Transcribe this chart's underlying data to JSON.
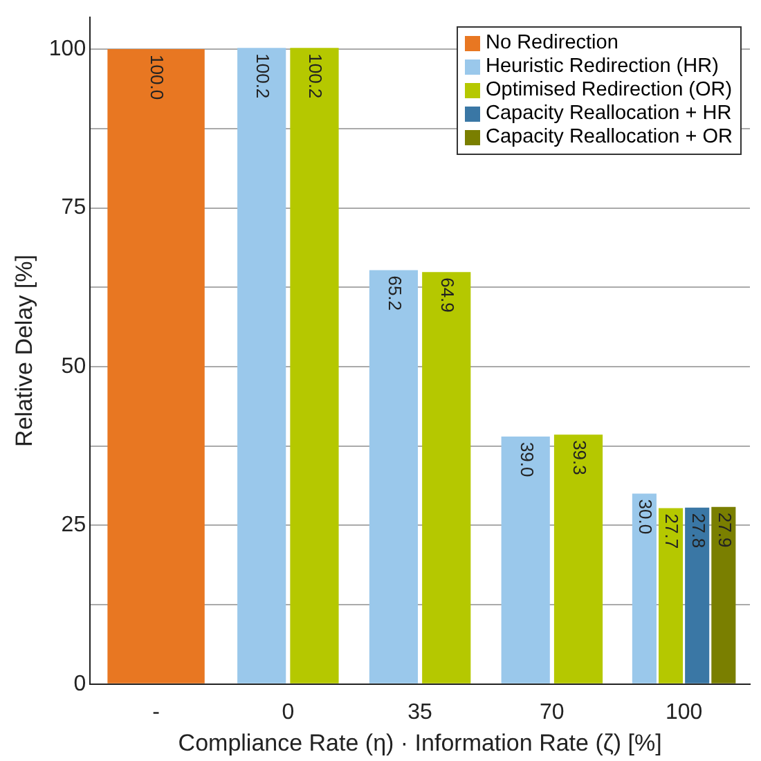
{
  "chart_data": {
    "type": "bar",
    "xlabel": "Compliance Rate (η) · Information Rate (ζ) [%]",
    "ylabel": "Relative Delay [%]",
    "categories": [
      "-",
      "0",
      "35",
      "70",
      "100"
    ],
    "series": [
      {
        "name": "No Redirection",
        "color": "#e87722",
        "values": [
          100.0,
          null,
          null,
          null,
          null
        ],
        "value_labels": [
          "100.0",
          null,
          null,
          null,
          null
        ]
      },
      {
        "name": "Heuristic Redirection (HR)",
        "color": "#9ac8eb",
        "values": [
          null,
          100.2,
          65.2,
          39.0,
          30.0
        ],
        "value_labels": [
          null,
          "100.2",
          "65.2",
          "39.0",
          "30.0"
        ]
      },
      {
        "name": "Optimised Redirection (OR)",
        "color": "#b5c800",
        "values": [
          null,
          100.2,
          64.9,
          39.3,
          27.7
        ],
        "value_labels": [
          null,
          "100.2",
          "64.9",
          "39.3",
          "27.7"
        ]
      },
      {
        "name": "Capacity Reallocation + HR",
        "color": "#3a77a5",
        "values": [
          null,
          null,
          null,
          null,
          27.8
        ],
        "value_labels": [
          null,
          null,
          null,
          null,
          "27.8"
        ]
      },
      {
        "name": "Capacity Reallocation + OR",
        "color": "#7a7f00",
        "values": [
          null,
          null,
          null,
          null,
          27.9
        ],
        "value_labels": [
          null,
          null,
          null,
          null,
          "27.9"
        ]
      }
    ],
    "ylim": [
      0,
      105
    ],
    "yticks": [
      0,
      {
        "value": 12.5,
        "label": null
      },
      25,
      {
        "value": 37.5,
        "label": null
      },
      50,
      {
        "value": 62.5,
        "label": null
      },
      75,
      {
        "value": 87.5,
        "label": null
      },
      100
    ],
    "grid": "y",
    "legend": "top right"
  }
}
